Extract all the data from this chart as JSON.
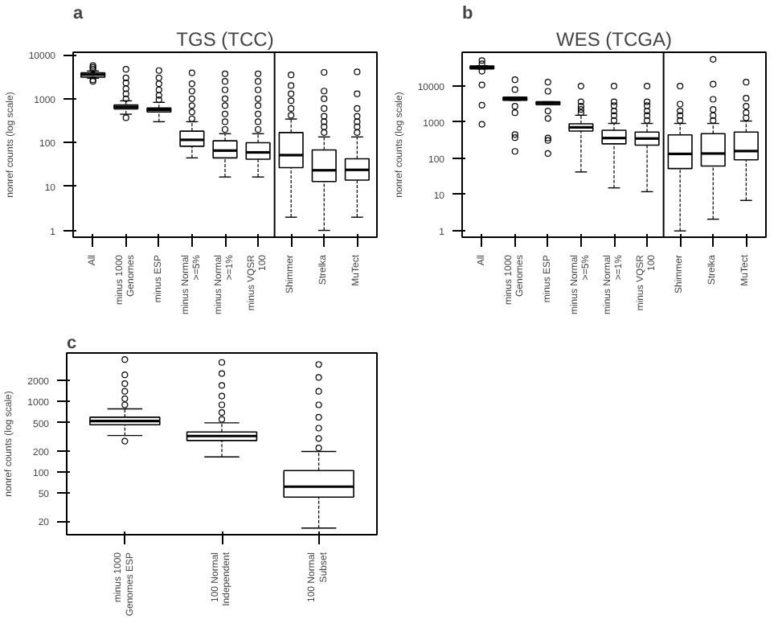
{
  "chart_data": [
    {
      "type": "box",
      "title": "TGS (TCC)",
      "ylabel": "nonref counts (log scale)",
      "annotations": [
        "a"
      ],
      "log": true,
      "grid": false,
      "ylim": [
        0.7,
        11500
      ],
      "yticks": [
        1,
        10,
        100,
        1000,
        10000
      ],
      "categories": [
        "All",
        "minus 1000 Genomes",
        "minus ESP",
        "minus Normal >=5%",
        "minus Normal >=1%",
        "minus VQSR 100",
        "Shimmer",
        "Strelka",
        "MuTect"
      ],
      "boxes": [
        {
          "low": 2950,
          "q1": 3100,
          "median": 3550,
          "q3": 3900,
          "high": 4300,
          "outliers": [
            2500,
            2700,
            4700,
            5200,
            5700
          ]
        },
        {
          "low": 445,
          "q1": 590,
          "median": 650,
          "q3": 720,
          "high": 900,
          "outliers": [
            370,
            1000,
            1300,
            1700,
            2300,
            3000,
            4700
          ]
        },
        {
          "low": 300,
          "q1": 500,
          "median": 560,
          "q3": 620,
          "high": 830,
          "outliers": [
            950,
            1200,
            1600,
            2200,
            3000,
            4400
          ]
        },
        {
          "low": 45,
          "q1": 83,
          "median": 116,
          "q3": 183,
          "high": 300,
          "outliers": [
            350,
            500,
            700,
            1000,
            1500,
            2200,
            3900
          ]
        },
        {
          "low": 16.5,
          "q1": 45,
          "median": 66,
          "q3": 110,
          "high": 160,
          "outliers": [
            200,
            300,
            450,
            700,
            1000,
            1600,
            2500,
            3700
          ]
        },
        {
          "low": 16.5,
          "q1": 42,
          "median": 60,
          "q3": 100,
          "high": 160,
          "outliers": [
            200,
            300,
            450,
            700,
            1000,
            1600,
            2500,
            3700
          ]
        },
        {
          "low": 2,
          "q1": 27,
          "median": 52,
          "q3": 170,
          "high": 345,
          "outliers": [
            420,
            600,
            900,
            1300,
            2000,
            3500
          ]
        },
        {
          "low": 1,
          "q1": 13,
          "median": 23.5,
          "q3": 68,
          "high": 135,
          "outliers": [
            170,
            230,
            300,
            400,
            600,
            1000,
            1500,
            4000
          ]
        },
        {
          "low": 2,
          "q1": 14,
          "median": 24,
          "q3": 43,
          "high": 135,
          "outliers": [
            170,
            230,
            300,
            400,
            600,
            1300,
            4100
          ]
        }
      ]
    },
    {
      "type": "box",
      "title": "WES (TCGA)",
      "ylabel": "nonref counts (log scale)",
      "annotations": [
        "b"
      ],
      "log": true,
      "grid": false,
      "ylim": [
        0.67,
        83000
      ],
      "yticks": [
        1,
        10,
        100,
        1000,
        10000
      ],
      "categories": [
        "All",
        "minus 1000 Genomes",
        "minus ESP",
        "minus Normal >=5%",
        "minus Normal >=1%",
        "minus VQSR 100",
        "Shimmer",
        "Strelka",
        "MuTect"
      ],
      "boxes": [
        {
          "low": 29000,
          "q1": 29000,
          "median": 32000,
          "q3": 35000,
          "high": 35000,
          "outliers": [
            860,
            2900,
            10500,
            25000,
            40000,
            49000
          ]
        },
        {
          "low": 3950,
          "q1": 3950,
          "median": 4370,
          "q3": 4800,
          "high": 4800,
          "outliers": [
            155,
            370,
            450,
            1800,
            2700,
            7800,
            14500
          ]
        },
        {
          "low": 3000,
          "q1": 3000,
          "median": 3400,
          "q3": 3600,
          "high": 3600,
          "outliers": [
            135,
            310,
            360,
            1250,
            2000,
            7000,
            12500
          ]
        },
        {
          "low": 42,
          "q1": 560,
          "median": 710,
          "q3": 890,
          "high": 1530,
          "outliers": [
            1800,
            2200,
            2700,
            3600,
            9700
          ]
        },
        {
          "low": 15.3,
          "q1": 250,
          "median": 360,
          "q3": 590,
          "high": 910,
          "outliers": [
            1100,
            1500,
            2000,
            2800,
            3600,
            9700
          ]
        },
        {
          "low": 12,
          "q1": 230,
          "median": 350,
          "q3": 525,
          "high": 910,
          "outliers": [
            1100,
            1500,
            2000,
            2800,
            3600,
            9700
          ]
        },
        {
          "low": 1,
          "q1": 52,
          "median": 132,
          "q3": 440,
          "high": 910,
          "outliers": [
            1100,
            1500,
            2000,
            3100,
            9700
          ]
        },
        {
          "low": 2.1,
          "q1": 61,
          "median": 135,
          "q3": 475,
          "high": 910,
          "outliers": [
            1100,
            1500,
            2200,
            4200,
            11000,
            53000
          ]
        },
        {
          "low": 6.9,
          "q1": 91,
          "median": 158,
          "q3": 525,
          "high": 1060,
          "outliers": [
            1300,
            1800,
            2700,
            4500,
            12500
          ]
        }
      ]
    },
    {
      "type": "box",
      "ylabel": "nonref counts (log scale)",
      "annotations": [
        "c"
      ],
      "log": true,
      "grid": false,
      "ylim": [
        12.9,
        4900
      ],
      "yticks": [
        20,
        50,
        100,
        200,
        500,
        1000,
        2000
      ],
      "categories": [
        "minus 1000 Genomes ESP",
        "100 Normal Independent",
        "100 Normal Subset"
      ],
      "boxes": [
        {
          "low": 330,
          "q1": 470,
          "median": 530,
          "q3": 600,
          "high": 790,
          "outliers": [
            275,
            900,
            1100,
            1400,
            1800,
            2400,
            3950
          ]
        },
        {
          "low": 164,
          "q1": 280,
          "median": 325,
          "q3": 370,
          "high": 500,
          "outliers": [
            560,
            700,
            900,
            1200,
            1700,
            2500,
            3600
          ]
        },
        {
          "low": 16,
          "q1": 44,
          "median": 62,
          "q3": 105,
          "high": 196,
          "outliers": [
            220,
            300,
            420,
            600,
            900,
            1400,
            2200,
            3370
          ]
        }
      ]
    }
  ]
}
